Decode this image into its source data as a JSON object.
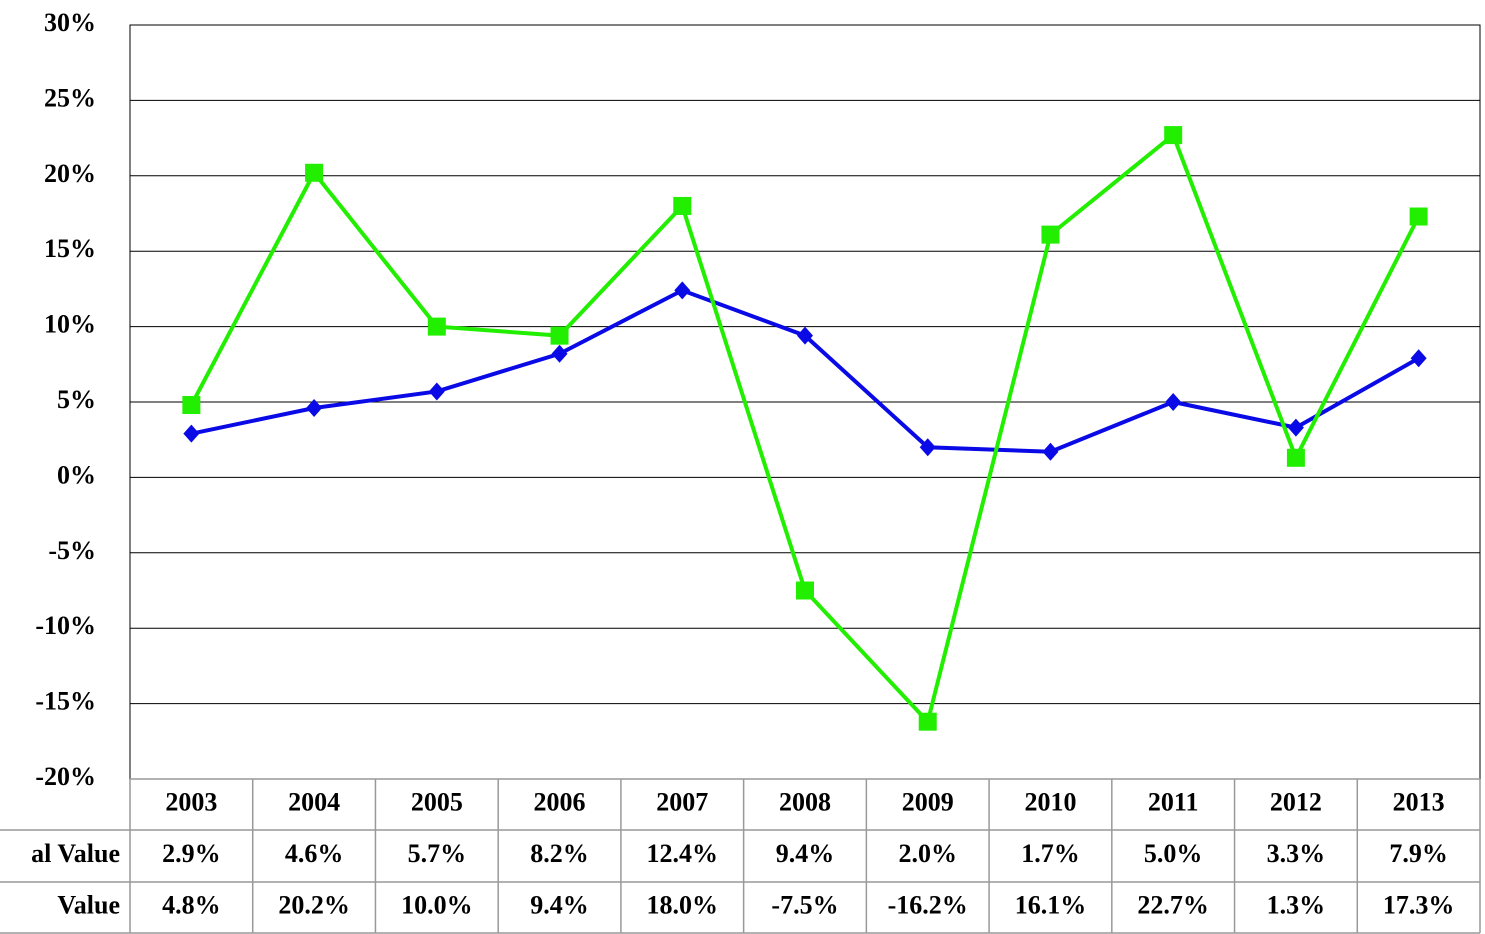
{
  "chart_data": {
    "type": "line",
    "categories": [
      "2003",
      "2004",
      "2005",
      "2006",
      "2007",
      "2008",
      "2009",
      "2010",
      "2011",
      "2012",
      "2013"
    ],
    "series": [
      {
        "name": "al Value",
        "color": "#0a0ae6",
        "marker": "diamond",
        "values": [
          2.9,
          4.6,
          5.7,
          8.2,
          12.4,
          9.4,
          2.0,
          1.7,
          5.0,
          3.3,
          7.9
        ],
        "value_labels": [
          "2.9%",
          "4.6%",
          "5.7%",
          "8.2%",
          "12.4%",
          "9.4%",
          "2.0%",
          "1.7%",
          "5.0%",
          "3.3%",
          "7.9%"
        ]
      },
      {
        "name": "Value",
        "color": "#22ee00",
        "marker": "square",
        "values": [
          4.8,
          20.2,
          10.0,
          9.4,
          18.0,
          -7.5,
          -16.2,
          16.1,
          22.7,
          1.3,
          17.3
        ],
        "value_labels": [
          "4.8%",
          "20.2%",
          "10.0%",
          "9.4%",
          "18.0%",
          "-7.5%",
          "-16.2%",
          "16.1%",
          "22.7%",
          "1.3%",
          "17.3%"
        ]
      }
    ],
    "ylim": [
      -20,
      30
    ],
    "yticks": [
      {
        "value": -20,
        "label": "-20%"
      },
      {
        "value": -15,
        "label": "-15%"
      },
      {
        "value": -10,
        "label": "-10%"
      },
      {
        "value": -5,
        "label": "-5%"
      },
      {
        "value": 0,
        "label": "0%"
      },
      {
        "value": 5,
        "label": "5%"
      },
      {
        "value": 10,
        "label": "10%"
      },
      {
        "value": 15,
        "label": "15%"
      },
      {
        "value": 20,
        "label": "20%"
      },
      {
        "value": 25,
        "label": "25%"
      },
      {
        "value": 30,
        "label": "30%"
      }
    ],
    "grid": true
  }
}
